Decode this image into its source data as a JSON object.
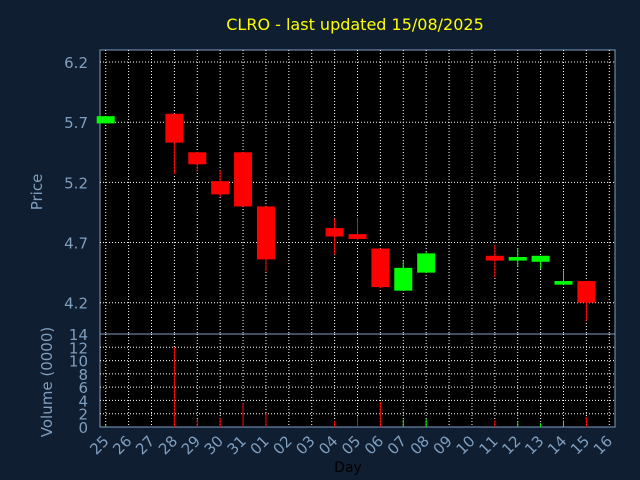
{
  "chart_data": [
    {
      "type": "candlestick",
      "title": "CLRO - last updated 15/08/2025",
      "xlabel": "Day",
      "ylabel": "Price",
      "ylim": [
        3.94,
        6.3
      ],
      "yticks": [
        "6.2",
        "5.7",
        "5.2",
        "4.7",
        "4.2"
      ],
      "grid": true,
      "colors": {
        "up": "#00ff00",
        "down": "#ff0000",
        "title": "#ffff00",
        "axis_text": "#7f9fbf",
        "background": "#0f1e30",
        "plot": "#000000"
      },
      "x": [
        "25",
        "26",
        "27",
        "28",
        "29",
        "30",
        "31",
        "01",
        "02",
        "03",
        "04",
        "05",
        "06",
        "07",
        "08",
        "09",
        "10",
        "11",
        "12",
        "13",
        "14",
        "15",
        "16"
      ],
      "candles": [
        {
          "day": "25",
          "open": 5.69,
          "high": 5.75,
          "low": 5.69,
          "close": 5.75
        },
        {
          "day": "28",
          "open": 5.77,
          "high": 5.77,
          "low": 5.27,
          "close": 5.53
        },
        {
          "day": "29",
          "open": 5.45,
          "high": 5.45,
          "low": 5.29,
          "close": 5.35
        },
        {
          "day": "30",
          "open": 5.21,
          "high": 5.3,
          "low": 5.08,
          "close": 5.1
        },
        {
          "day": "31",
          "open": 5.45,
          "high": 5.45,
          "low": 5.0,
          "close": 5.0
        },
        {
          "day": "01",
          "open": 5.0,
          "high": 5.0,
          "low": 4.46,
          "close": 4.56
        },
        {
          "day": "04",
          "open": 4.82,
          "high": 4.9,
          "low": 4.6,
          "close": 4.75
        },
        {
          "day": "05",
          "open": 4.77,
          "high": 4.91,
          "low": 4.72,
          "close": 4.73
        },
        {
          "day": "06",
          "open": 4.65,
          "high": 4.65,
          "low": 4.32,
          "close": 4.33
        },
        {
          "day": "07",
          "open": 4.3,
          "high": 4.55,
          "low": 4.3,
          "close": 4.49
        },
        {
          "day": "08",
          "open": 4.45,
          "high": 4.62,
          "low": 4.45,
          "close": 4.61
        },
        {
          "day": "11",
          "open": 4.59,
          "high": 4.68,
          "low": 4.41,
          "close": 4.55
        },
        {
          "day": "12",
          "open": 4.55,
          "high": 4.65,
          "low": 4.5,
          "close": 4.58
        },
        {
          "day": "13",
          "open": 4.54,
          "high": 4.58,
          "low": 4.48,
          "close": 4.59
        },
        {
          "day": "14",
          "open": 4.35,
          "high": 4.47,
          "low": 4.35,
          "close": 4.38
        },
        {
          "day": "15",
          "open": 4.38,
          "high": 4.38,
          "low": 4.05,
          "close": 4.2
        }
      ]
    },
    {
      "type": "bar",
      "ylabel": "Volume (0000)",
      "xlabel": "Day",
      "ylim": [
        0,
        14
      ],
      "yticks": [
        "14",
        "12",
        "10",
        "8",
        "6",
        "4",
        "2",
        "0"
      ],
      "categories": [
        "25",
        "26",
        "27",
        "28",
        "29",
        "30",
        "31",
        "01",
        "02",
        "03",
        "04",
        "05",
        "06",
        "07",
        "08",
        "09",
        "10",
        "11",
        "12",
        "13",
        "14",
        "15",
        "16"
      ],
      "values": [
        0.3,
        0,
        0,
        12,
        1.2,
        1.4,
        3.6,
        2.1,
        0,
        0,
        0.9,
        1.6,
        3.8,
        1.1,
        1.2,
        0,
        0,
        1.0,
        0.9,
        0.6,
        1.0,
        1.5,
        0
      ],
      "bar_colors": [
        "#00ff00",
        "#ff0000",
        "#ff0000",
        "#ff0000",
        "#ff0000",
        "#ff0000",
        "#ff0000",
        "#ff0000",
        "#ff0000",
        "#ff0000",
        "#ff0000",
        "#ff0000",
        "#ff0000",
        "#00ff00",
        "#00ff00",
        "#ff0000",
        "#ff0000",
        "#ff0000",
        "#00ff00",
        "#00ff00",
        "#00ff00",
        "#ff0000",
        "#ff0000"
      ]
    }
  ]
}
